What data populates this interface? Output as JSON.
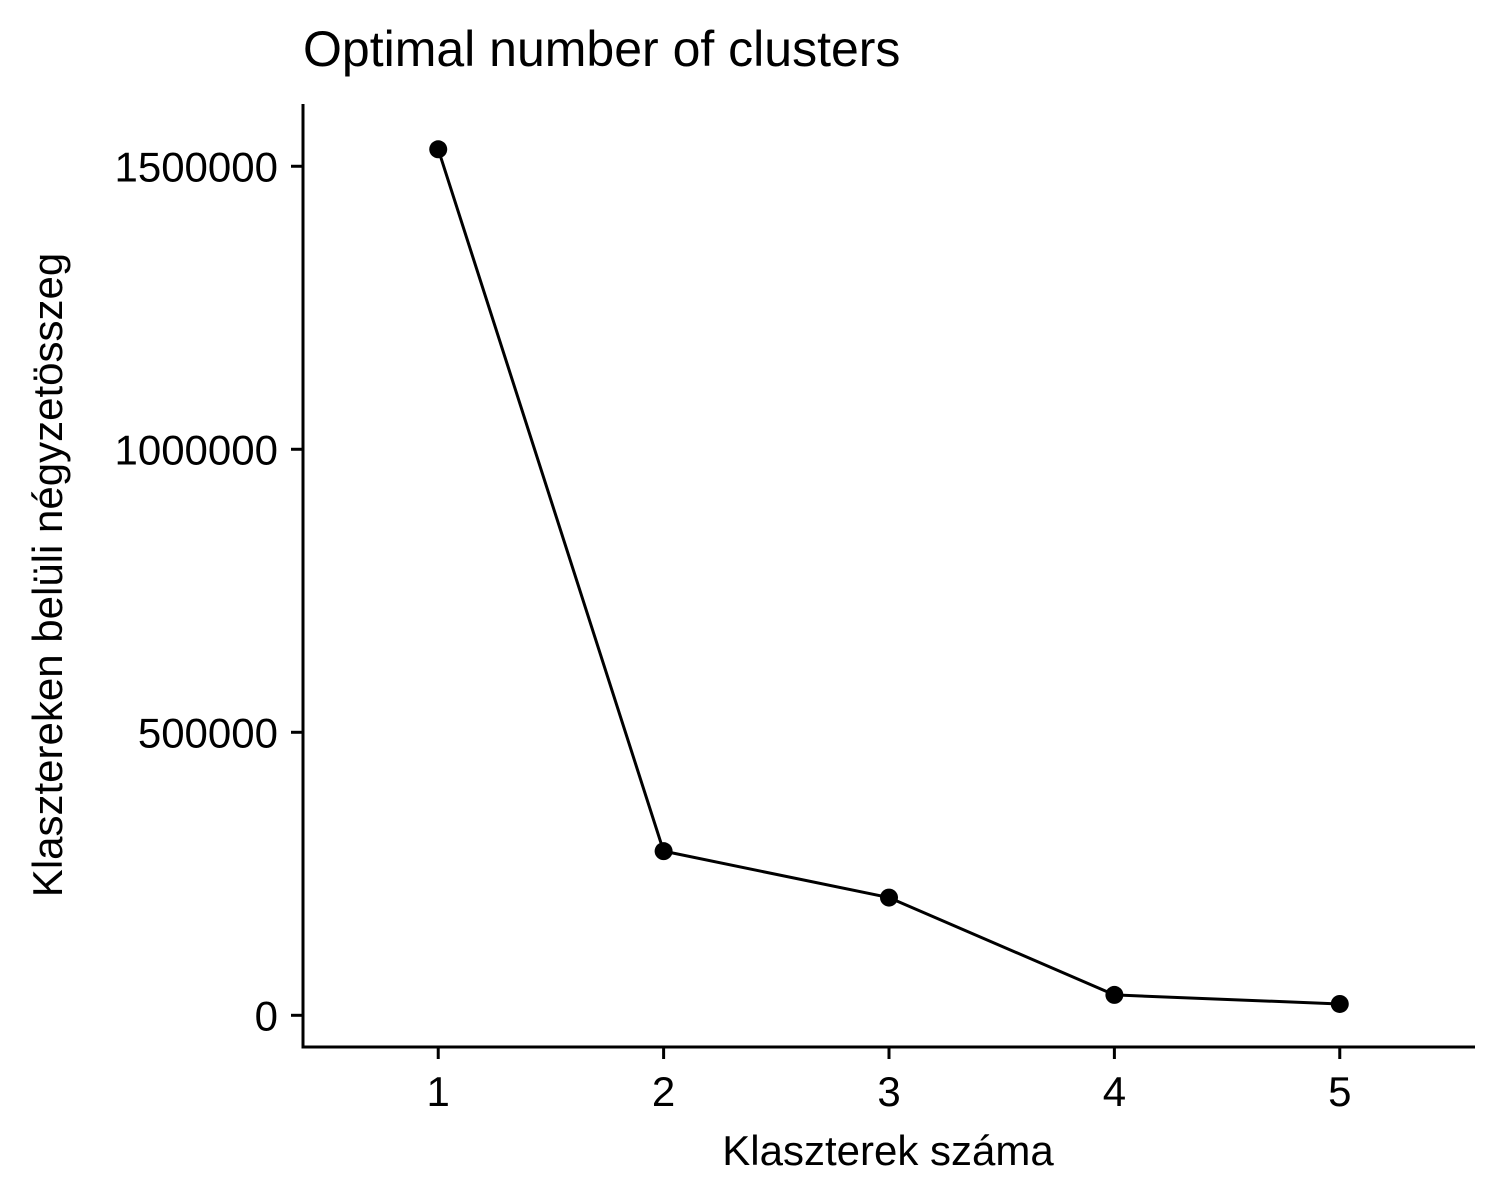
{
  "chart_data": {
    "type": "line",
    "title": "Optimal number of clusters",
    "xlabel": "Klaszterek száma",
    "ylabel": "Klasztereken belüli négyzetösszeg",
    "x": [
      1,
      2,
      3,
      4,
      5
    ],
    "series": [
      {
        "values": [
          1530000,
          290000,
          208000,
          36000,
          20000
        ]
      }
    ],
    "xlim": [
      0.4,
      5.6
    ],
    "ylim": [
      -56000,
      1610000
    ],
    "x_ticks": [
      1,
      2,
      3,
      4,
      5
    ],
    "x_tick_labels": [
      "1",
      "2",
      "3",
      "4",
      "5"
    ],
    "y_ticks": [
      0,
      500000,
      1000000,
      1500000
    ],
    "y_tick_labels": [
      "0",
      "500000",
      "1000000",
      "1500000"
    ],
    "grid": false,
    "legend": "none",
    "line_color": "#000000",
    "point_color": "#000000"
  }
}
